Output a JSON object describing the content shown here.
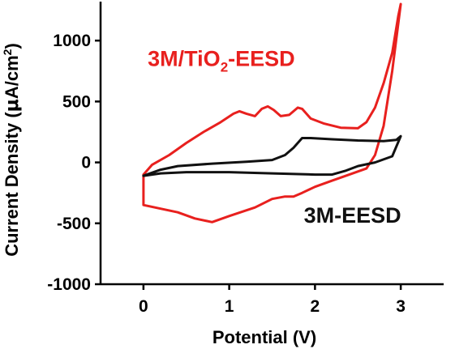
{
  "chart_data": {
    "type": "line",
    "title": "",
    "xlabel": "Potential (V)",
    "ylabel_main": "Current Density (",
    "ylabel_mu": "μ",
    "ylabel_unit": "A/cm",
    "ylabel_sup": "2",
    "ylabel_close": ")",
    "xlim": [
      -0.5,
      3.5
    ],
    "ylim": [
      -1000,
      1320
    ],
    "x_ticks": [
      0,
      1,
      2,
      3
    ],
    "x_tick_labels": [
      "0",
      "1",
      "2",
      "3"
    ],
    "y_ticks": [
      -1000,
      -500,
      0,
      500,
      1000
    ],
    "y_tick_labels": [
      "-1000",
      "-500",
      "0",
      "500",
      "1000"
    ],
    "grid": false,
    "legend": "none",
    "series": [
      {
        "label_main": "3M/TiO",
        "label_sub": "2",
        "label_tail": "-EESD",
        "color": "#e8201e",
        "label_pos": [
          0.05,
          790
        ],
        "points": [
          [
            0,
            -100
          ],
          [
            0.1,
            -20
          ],
          [
            0.3,
            60
          ],
          [
            0.5,
            160
          ],
          [
            0.7,
            250
          ],
          [
            0.9,
            330
          ],
          [
            1.05,
            400
          ],
          [
            1.12,
            420
          ],
          [
            1.2,
            400
          ],
          [
            1.3,
            380
          ],
          [
            1.38,
            440
          ],
          [
            1.45,
            460
          ],
          [
            1.52,
            430
          ],
          [
            1.6,
            380
          ],
          [
            1.7,
            390
          ],
          [
            1.8,
            450
          ],
          [
            1.85,
            440
          ],
          [
            1.95,
            360
          ],
          [
            2.1,
            320
          ],
          [
            2.3,
            285
          ],
          [
            2.5,
            280
          ],
          [
            2.6,
            330
          ],
          [
            2.7,
            450
          ],
          [
            2.8,
            650
          ],
          [
            2.9,
            900
          ],
          [
            2.97,
            1200
          ],
          [
            3.0,
            1300
          ],
          [
            2.9,
            750
          ],
          [
            2.8,
            300
          ],
          [
            2.7,
            60
          ],
          [
            2.6,
            -50
          ],
          [
            2.4,
            -100
          ],
          [
            2.2,
            -150
          ],
          [
            2.0,
            -200
          ],
          [
            1.85,
            -250
          ],
          [
            1.75,
            -280
          ],
          [
            1.65,
            -280
          ],
          [
            1.5,
            -300
          ],
          [
            1.3,
            -370
          ],
          [
            1.0,
            -440
          ],
          [
            0.8,
            -490
          ],
          [
            0.6,
            -460
          ],
          [
            0.4,
            -410
          ],
          [
            0.2,
            -380
          ],
          [
            0,
            -350
          ],
          [
            0,
            -100
          ]
        ]
      },
      {
        "label_main": "3M-EESD",
        "label_sub": "",
        "label_tail": "",
        "color": "#111111",
        "label_pos": [
          1.87,
          -495
        ],
        "points": [
          [
            0,
            -110
          ],
          [
            0.2,
            -60
          ],
          [
            0.4,
            -30
          ],
          [
            0.8,
            -10
          ],
          [
            1.2,
            5
          ],
          [
            1.5,
            20
          ],
          [
            1.65,
            60
          ],
          [
            1.75,
            120
          ],
          [
            1.85,
            200
          ],
          [
            1.95,
            200
          ],
          [
            2.2,
            190
          ],
          [
            2.5,
            180
          ],
          [
            2.8,
            175
          ],
          [
            2.95,
            185
          ],
          [
            3.0,
            215
          ],
          [
            2.9,
            50
          ],
          [
            2.7,
            0
          ],
          [
            2.5,
            -30
          ],
          [
            2.35,
            -70
          ],
          [
            2.2,
            -100
          ],
          [
            2.0,
            -100
          ],
          [
            1.5,
            -90
          ],
          [
            1.0,
            -80
          ],
          [
            0.5,
            -80
          ],
          [
            0.2,
            -90
          ],
          [
            0,
            -110
          ]
        ]
      }
    ]
  }
}
